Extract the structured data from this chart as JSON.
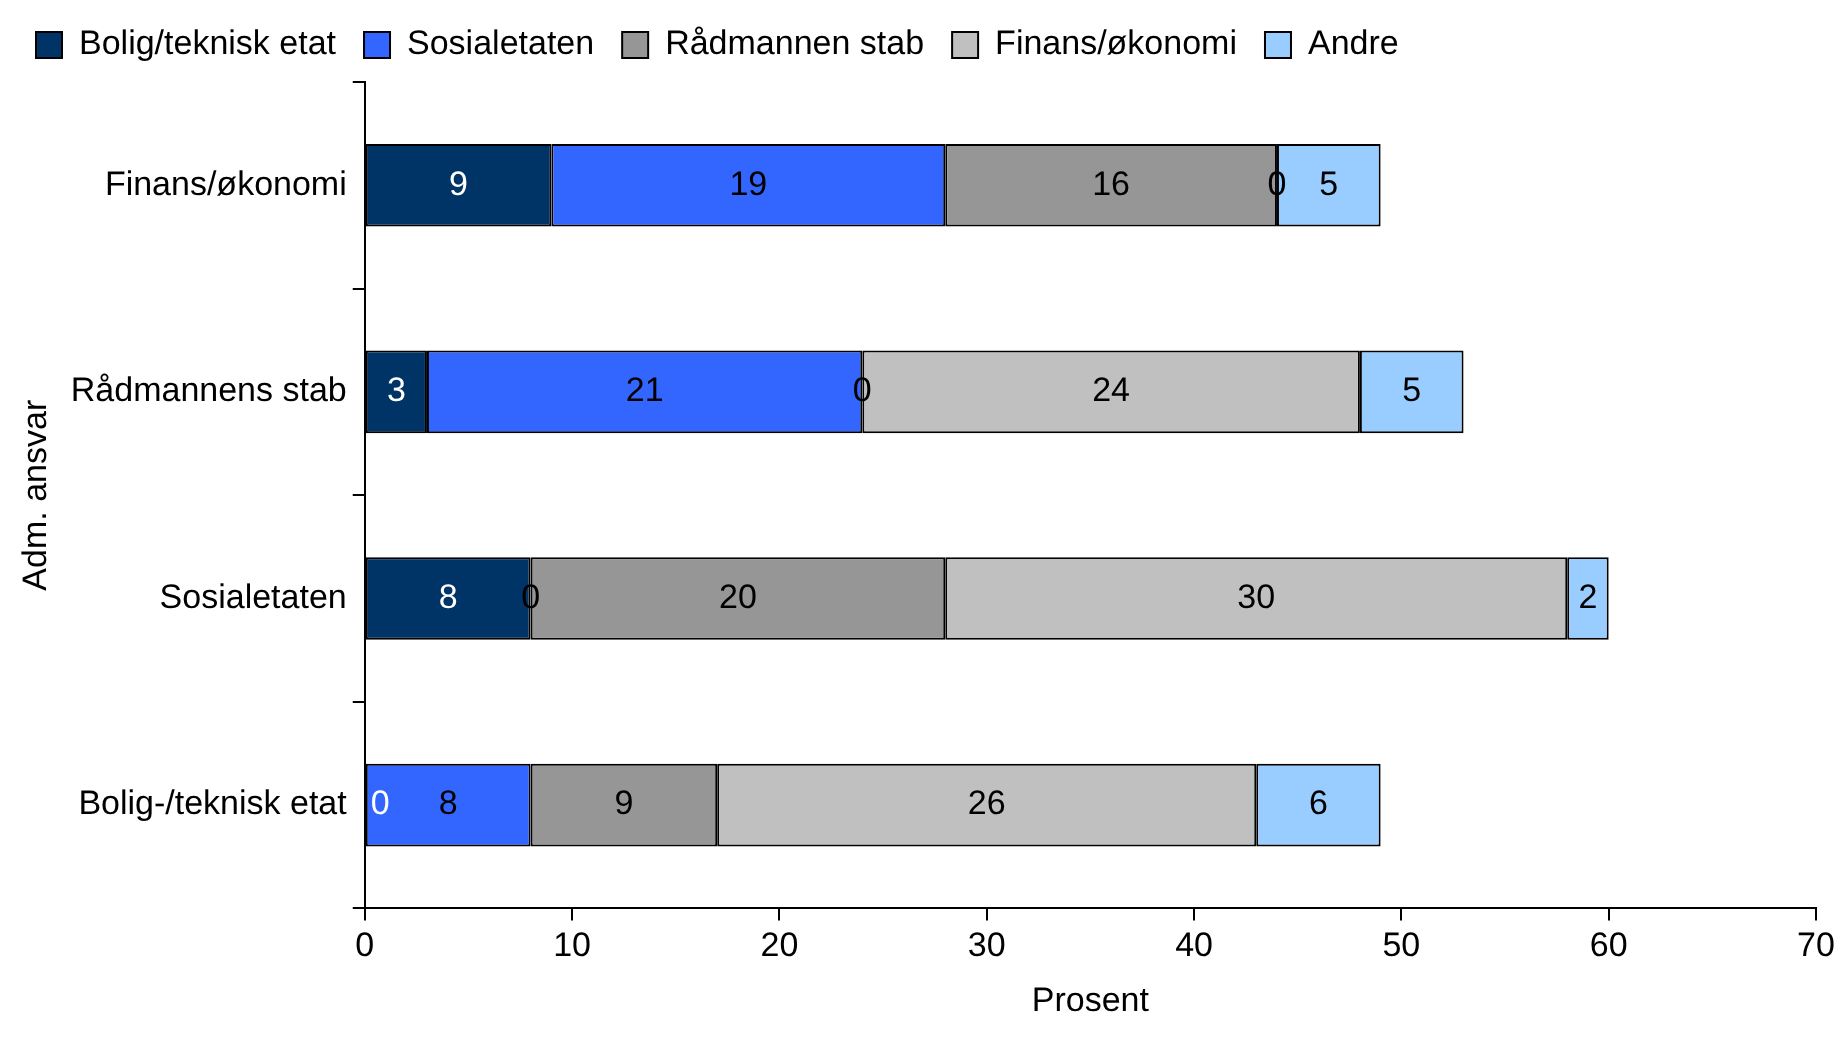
{
  "chart_data": {
    "type": "bar",
    "orientation": "horizontal",
    "stacked": true,
    "xlabel": "Prosent",
    "ylabel": "Adm. ansvar",
    "categories": [
      "Finans/økonomi",
      "Rådmannens stab",
      "Sosialetaten",
      "Bolig-/teknisk etat"
    ],
    "series": [
      {
        "name": "Bolig/teknisk etat",
        "color": "#003366",
        "values": [
          9,
          3,
          8,
          0
        ],
        "value_labels": [
          "9",
          "3",
          "8",
          null
        ]
      },
      {
        "name": "Sosialetaten",
        "color": "#3366ff",
        "values": [
          19,
          21,
          0,
          8
        ],
        "value_labels": [
          "19",
          "21",
          null,
          "8"
        ]
      },
      {
        "name": "Rådmannen stab",
        "color": "#969696",
        "values": [
          16,
          0,
          20,
          9
        ],
        "value_labels": [
          "16",
          null,
          "20",
          "9"
        ]
      },
      {
        "name": "Finans/økonomi",
        "color": "#c0c0c0",
        "values": [
          0,
          24,
          30,
          26
        ],
        "value_labels": [
          "0",
          "24",
          "30",
          "26"
        ]
      },
      {
        "name": "Andre",
        "color": "#99ccff",
        "values": [
          5,
          5,
          2,
          6
        ],
        "value_labels": [
          "5",
          "5",
          "2",
          "6"
        ]
      }
    ],
    "annotations": [
      {
        "text": "0",
        "x": 0,
        "y": "Bolig-/teknisk etat"
      },
      {
        "text": "0",
        "x": 8,
        "y": "Sosialetaten"
      },
      {
        "text": "0",
        "x": 24,
        "y": "Rådmannens stab"
      }
    ],
    "xlim": [
      0,
      70
    ],
    "xticks": [
      0,
      10,
      20,
      30,
      40,
      50,
      60,
      70
    ],
    "grid": false,
    "legend": "top"
  }
}
